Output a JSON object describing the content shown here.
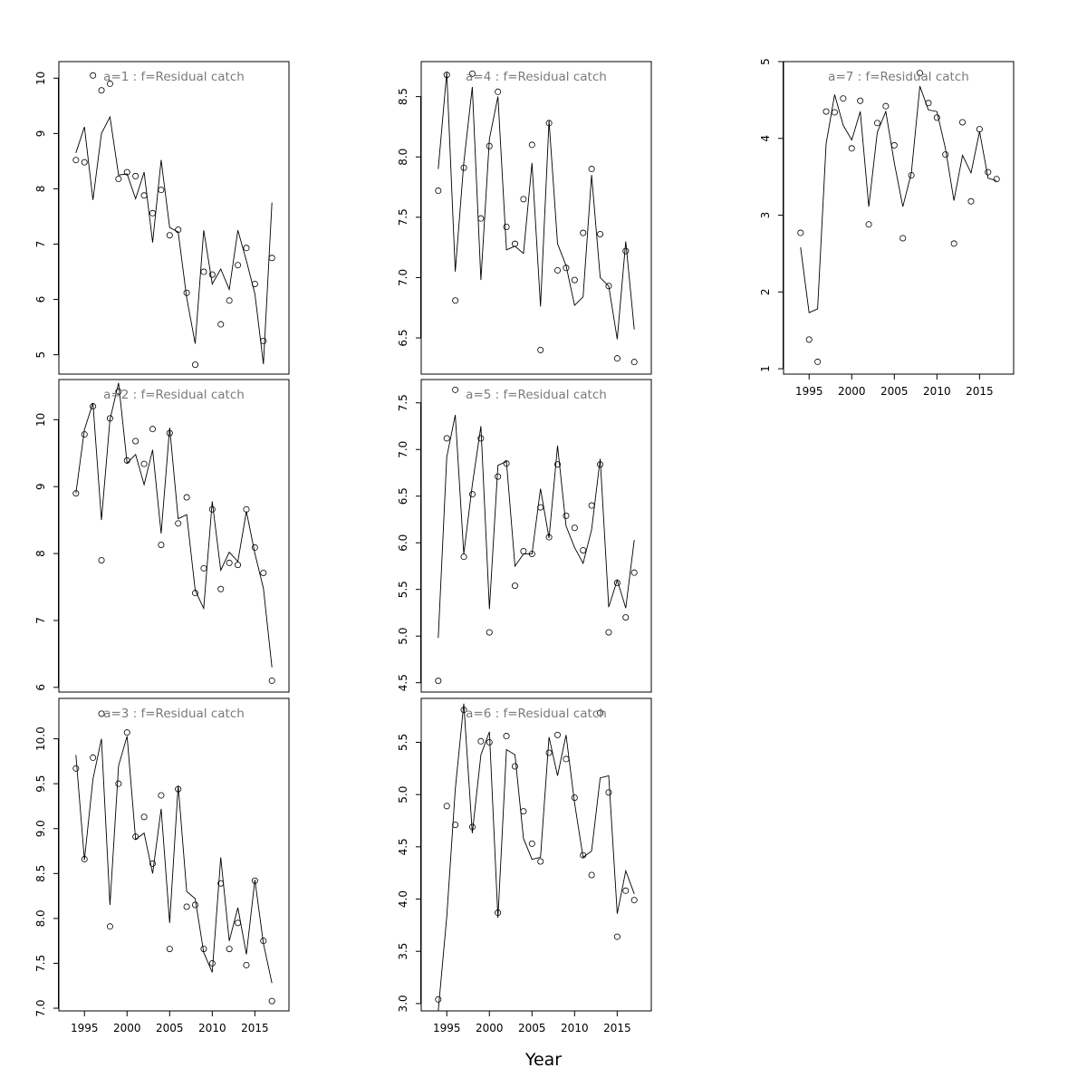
{
  "figure": {
    "xlabel": "Year"
  },
  "chart_data": [
    {
      "type": "line",
      "title": "a=1  :  f=Residual catch",
      "xlabel": "",
      "ylabel": "",
      "x": [
        1994,
        1995,
        1996,
        1997,
        1998,
        1999,
        2000,
        2001,
        2002,
        2003,
        2004,
        2005,
        2006,
        2007,
        2008,
        2009,
        2010,
        2011,
        2012,
        2013,
        2014,
        2015,
        2016,
        2017
      ],
      "xlim": [
        1992,
        2019
      ],
      "ylim": [
        4.65,
        10.3
      ],
      "xticks": [
        1995,
        2000,
        2005,
        2010,
        2015
      ],
      "yticks": [
        5,
        6,
        7,
        8,
        9,
        10
      ],
      "series": [
        {
          "style": "line",
          "values": [
            8.65,
            9.12,
            7.8,
            9.0,
            9.3,
            8.25,
            8.27,
            7.82,
            8.3,
            7.03,
            8.52,
            7.3,
            7.22,
            6.03,
            5.2,
            7.25,
            6.28,
            6.55,
            6.18,
            7.25,
            6.7,
            6.1,
            4.83,
            7.75
          ]
        },
        {
          "style": "points",
          "values": [
            8.52,
            8.48,
            10.05,
            9.78,
            9.9,
            8.18,
            8.3,
            8.23,
            7.88,
            7.56,
            7.98,
            7.16,
            7.26,
            6.12,
            4.82,
            6.5,
            6.45,
            5.55,
            5.98,
            6.62,
            6.93,
            6.28,
            5.25,
            6.75
          ]
        }
      ]
    },
    {
      "type": "line",
      "title": "a=2  :  f=Residual catch",
      "xlabel": "",
      "ylabel": "",
      "x": [
        1994,
        1995,
        1996,
        1997,
        1998,
        1999,
        2000,
        2001,
        2002,
        2003,
        2004,
        2005,
        2006,
        2007,
        2008,
        2009,
        2010,
        2011,
        2012,
        2013,
        2014,
        2015,
        2016,
        2017
      ],
      "xlim": [
        1992,
        2019
      ],
      "ylim": [
        5.93,
        10.6
      ],
      "xticks": [
        1995,
        2000,
        2005,
        2010,
        2015
      ],
      "yticks": [
        6,
        7,
        8,
        9,
        10
      ],
      "series": [
        {
          "style": "line",
          "values": [
            8.9,
            9.85,
            10.25,
            8.5,
            10.0,
            10.55,
            9.35,
            9.48,
            9.03,
            9.55,
            8.3,
            9.88,
            8.52,
            8.58,
            7.45,
            7.18,
            8.78,
            7.75,
            8.02,
            7.88,
            8.63,
            8.0,
            7.48,
            6.3
          ]
        },
        {
          "style": "points",
          "values": [
            8.9,
            9.78,
            10.2,
            7.9,
            10.02,
            10.42,
            9.39,
            9.68,
            9.34,
            9.86,
            8.13,
            9.8,
            8.45,
            8.84,
            7.41,
            7.78,
            8.66,
            7.47,
            7.86,
            7.83,
            8.66,
            8.09,
            7.71,
            6.1
          ]
        }
      ]
    },
    {
      "type": "line",
      "title": "a=3  :  f=Residual catch",
      "xlabel": "",
      "ylabel": "",
      "x": [
        1994,
        1995,
        1996,
        1997,
        1998,
        1999,
        2000,
        2001,
        2002,
        2003,
        2004,
        2005,
        2006,
        2007,
        2008,
        2009,
        2010,
        2011,
        2012,
        2013,
        2014,
        2015,
        2016,
        2017
      ],
      "xlim": [
        1992,
        2019
      ],
      "ylim": [
        6.97,
        10.45
      ],
      "xticks": [
        1995,
        2000,
        2005,
        2010,
        2015
      ],
      "yticks": [
        7.0,
        7.5,
        8.0,
        8.5,
        9.0,
        9.5,
        10.0
      ],
      "series": [
        {
          "style": "line",
          "values": [
            9.82,
            8.65,
            9.55,
            10.0,
            8.15,
            9.7,
            10.03,
            8.88,
            8.95,
            8.5,
            9.22,
            7.95,
            9.48,
            8.3,
            8.22,
            7.62,
            7.4,
            8.68,
            7.75,
            8.12,
            7.6,
            8.43,
            7.72,
            7.28
          ]
        },
        {
          "style": "points",
          "values": [
            9.67,
            8.66,
            9.79,
            10.28,
            7.91,
            9.5,
            10.07,
            8.91,
            9.13,
            8.61,
            9.37,
            7.66,
            9.44,
            8.13,
            8.15,
            7.66,
            7.5,
            8.39,
            7.66,
            7.95,
            7.48,
            8.42,
            7.75,
            7.08
          ]
        }
      ]
    },
    {
      "type": "line",
      "title": "a=4  :  f=Residual catch",
      "xlabel": "",
      "ylabel": "",
      "x": [
        1994,
        1995,
        1996,
        1997,
        1998,
        1999,
        2000,
        2001,
        2002,
        2003,
        2004,
        2005,
        2006,
        2007,
        2008,
        2009,
        2010,
        2011,
        2012,
        2013,
        2014,
        2015,
        2016,
        2017
      ],
      "xlim": [
        1992,
        2019
      ],
      "ylim": [
        6.2,
        8.79
      ],
      "xticks": [
        1995,
        2000,
        2005,
        2010,
        2015
      ],
      "yticks": [
        6.5,
        7.0,
        7.5,
        8.0,
        8.5
      ],
      "series": [
        {
          "style": "line",
          "values": [
            7.9,
            8.7,
            7.05,
            7.95,
            8.58,
            6.98,
            8.15,
            8.5,
            7.23,
            7.26,
            7.2,
            7.95,
            6.76,
            8.3,
            7.28,
            7.1,
            6.77,
            6.84,
            7.85,
            7.0,
            6.93,
            6.49,
            7.3,
            6.57
          ]
        },
        {
          "style": "points",
          "values": [
            7.72,
            8.68,
            6.81,
            7.91,
            8.69,
            7.49,
            8.09,
            8.54,
            7.42,
            7.28,
            7.65,
            8.1,
            6.4,
            8.28,
            7.06,
            7.08,
            6.98,
            7.37,
            7.9,
            7.36,
            6.93,
            6.33,
            7.22,
            6.3
          ]
        }
      ]
    },
    {
      "type": "line",
      "title": "a=5  :  f=Residual catch",
      "xlabel": "",
      "ylabel": "",
      "x": [
        1994,
        1995,
        1996,
        1997,
        1998,
        1999,
        2000,
        2001,
        2002,
        2003,
        2004,
        2005,
        2006,
        2007,
        2008,
        2009,
        2010,
        2011,
        2012,
        2013,
        2014,
        2015,
        2016,
        2017
      ],
      "xlim": [
        1992,
        2019
      ],
      "ylim": [
        4.4,
        7.75
      ],
      "xticks": [
        1995,
        2000,
        2005,
        2010,
        2015
      ],
      "yticks": [
        4.5,
        5.0,
        5.5,
        6.0,
        6.5,
        7.0,
        7.5
      ],
      "series": [
        {
          "style": "line",
          "values": [
            4.98,
            6.92,
            7.37,
            5.88,
            6.62,
            7.25,
            5.29,
            6.83,
            6.87,
            5.75,
            5.88,
            5.88,
            6.58,
            6.05,
            7.04,
            6.18,
            5.95,
            5.78,
            6.14,
            6.9,
            5.31,
            5.6,
            5.3,
            6.03
          ]
        },
        {
          "style": "points",
          "values": [
            4.52,
            7.12,
            7.64,
            5.85,
            6.52,
            7.12,
            5.04,
            6.71,
            6.85,
            5.54,
            5.91,
            5.88,
            6.38,
            6.06,
            6.84,
            6.29,
            6.16,
            5.92,
            6.4,
            6.84,
            5.04,
            5.57,
            5.2,
            5.68
          ]
        }
      ]
    },
    {
      "type": "line",
      "title": "a=6  :  f=Residual catch",
      "xlabel": "",
      "ylabel": "",
      "x": [
        1994,
        1995,
        1996,
        1997,
        1998,
        1999,
        2000,
        2001,
        2002,
        2003,
        2004,
        2005,
        2006,
        2007,
        2008,
        2009,
        2010,
        2011,
        2012,
        2013,
        2014,
        2015,
        2016,
        2017
      ],
      "xlim": [
        1992,
        2019
      ],
      "ylim": [
        2.93,
        5.92
      ],
      "xticks": [
        1995,
        2000,
        2005,
        2010,
        2015
      ],
      "yticks": [
        3.0,
        3.5,
        4.0,
        4.5,
        5.0,
        5.5
      ],
      "series": [
        {
          "style": "line",
          "values": [
            2.93,
            3.83,
            5.05,
            5.87,
            4.63,
            5.38,
            5.6,
            3.82,
            5.43,
            5.38,
            4.58,
            4.38,
            4.4,
            5.55,
            5.18,
            5.57,
            4.92,
            4.4,
            4.46,
            5.16,
            5.18,
            3.86,
            4.27,
            4.05
          ]
        },
        {
          "style": "points",
          "values": [
            3.04,
            4.89,
            4.71,
            5.81,
            4.69,
            5.51,
            5.5,
            3.87,
            5.56,
            5.27,
            4.84,
            4.53,
            4.36,
            5.4,
            5.57,
            5.34,
            4.97,
            4.42,
            4.23,
            5.78,
            5.02,
            3.64,
            4.08,
            3.99
          ]
        }
      ]
    },
    {
      "type": "line",
      "title": "a=7  :  f=Residual catch",
      "xlabel": "",
      "ylabel": "",
      "x": [
        1994,
        1995,
        1996,
        1997,
        1998,
        1999,
        2000,
        2001,
        2002,
        2003,
        2004,
        2005,
        2006,
        2007,
        2008,
        2009,
        2010,
        2011,
        2012,
        2013,
        2014,
        2015,
        2016,
        2017
      ],
      "xlim": [
        1992,
        2019
      ],
      "ylim": [
        0.93,
        5.0
      ],
      "xticks": [
        1995,
        2000,
        2005,
        2010,
        2015
      ],
      "yticks": [
        1,
        2,
        3,
        4,
        5
      ],
      "series": [
        {
          "style": "line",
          "values": [
            2.58,
            1.73,
            1.78,
            3.93,
            4.57,
            4.17,
            3.98,
            4.35,
            3.11,
            4.08,
            4.35,
            3.68,
            3.11,
            3.55,
            4.68,
            4.37,
            4.35,
            3.87,
            3.19,
            3.78,
            3.55,
            4.09,
            3.48,
            3.45
          ]
        },
        {
          "style": "points",
          "values": [
            2.77,
            1.38,
            1.09,
            4.35,
            4.34,
            4.52,
            3.87,
            4.49,
            2.88,
            4.2,
            4.42,
            3.91,
            2.7,
            3.52,
            4.85,
            4.46,
            4.27,
            3.79,
            2.63,
            4.21,
            3.18,
            4.12,
            3.56,
            3.47
          ]
        }
      ]
    }
  ]
}
